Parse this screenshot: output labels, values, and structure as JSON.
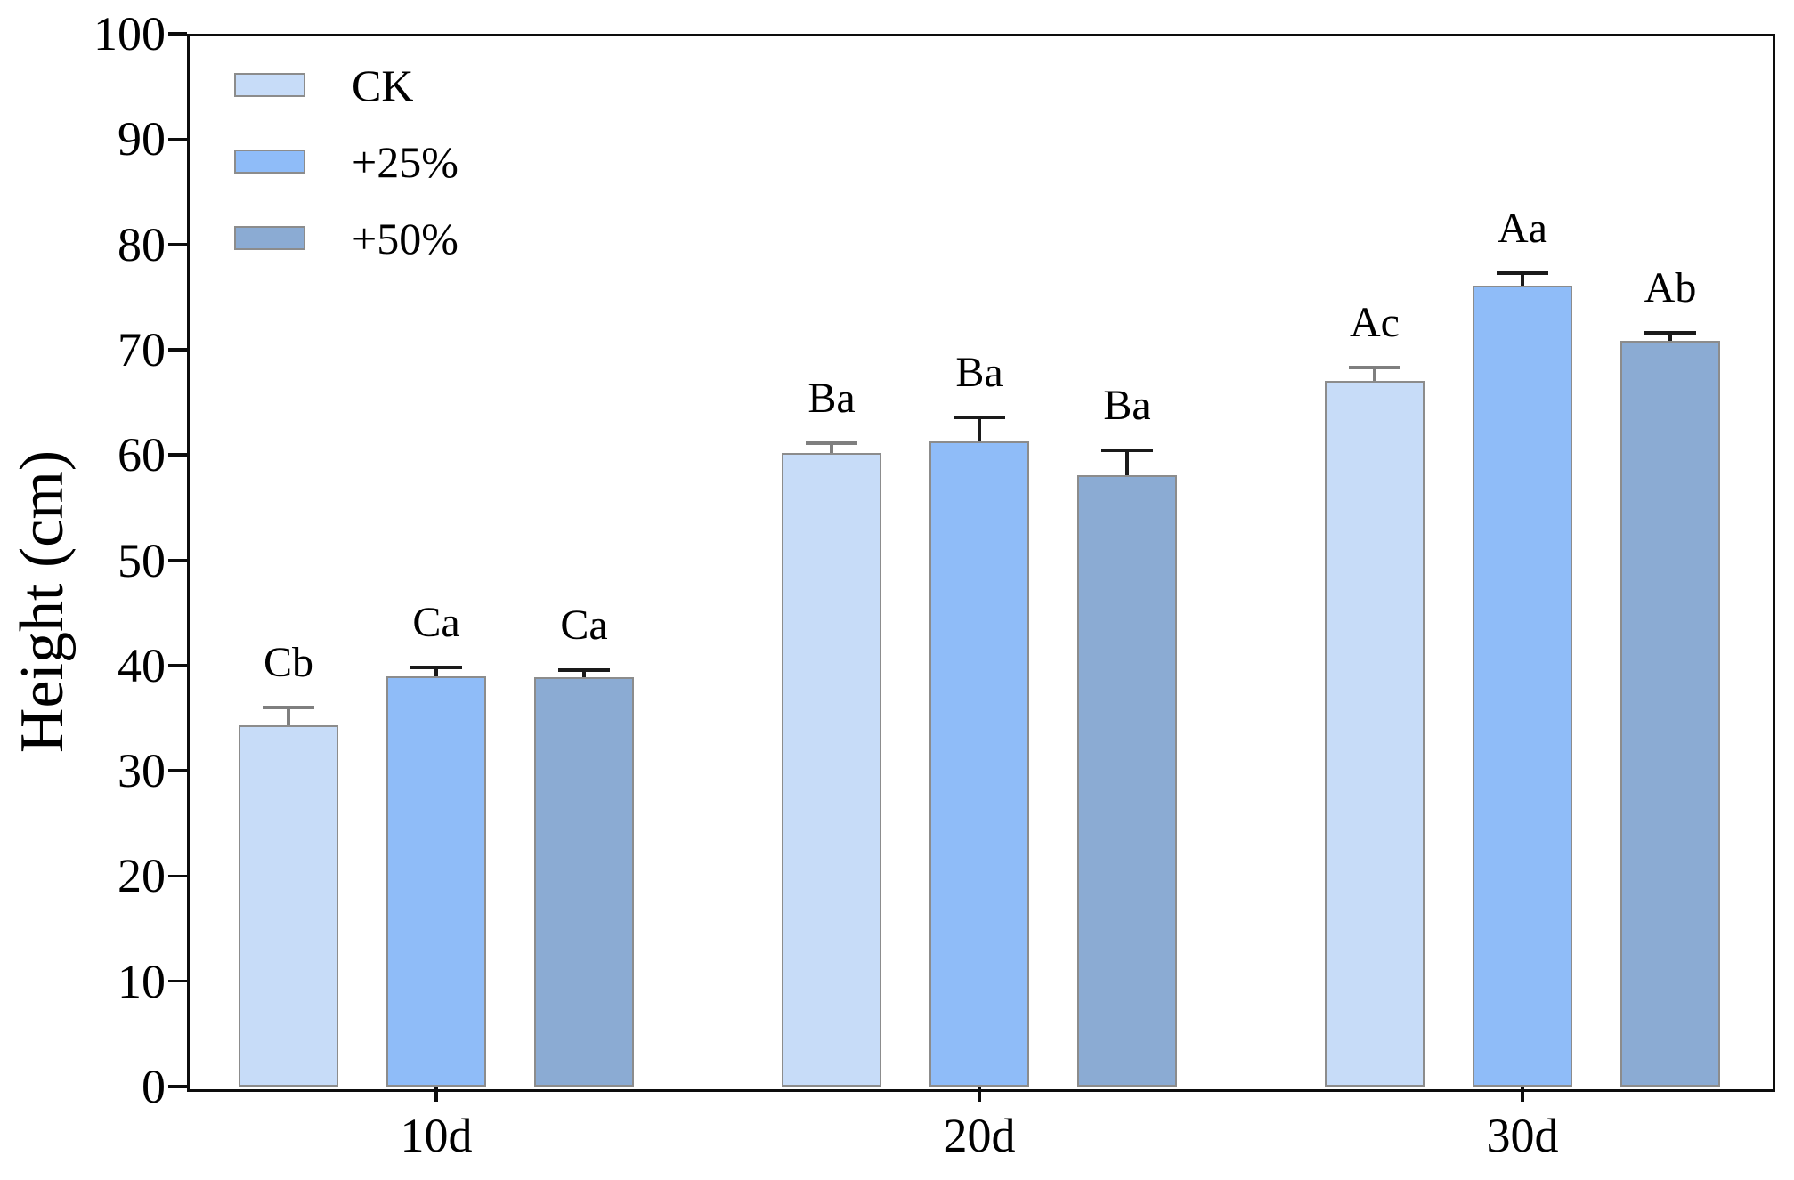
{
  "figure": {
    "background": "#ffffff"
  },
  "chart_data": {
    "type": "bar",
    "title": "",
    "xlabel": "",
    "ylabel": "Height (cm)",
    "ylim": [
      0,
      100
    ],
    "ytick_interval": 10,
    "ytick_labels": [
      "0",
      "10",
      "20",
      "30",
      "40",
      "50",
      "60",
      "70",
      "80",
      "90",
      "100"
    ],
    "categories": [
      "10d",
      "20d",
      "30d"
    ],
    "grid": false,
    "error_bars": "upper-only",
    "legend": {
      "position": "top-left",
      "entries": [
        "CK",
        "+25%",
        "+50%"
      ]
    },
    "colors": {
      "spine": "#0d0d0d",
      "bar_edge": "#8C8C8C"
    },
    "series": [
      {
        "name": "CK",
        "fill": "#C7DCF8",
        "edge": "#8C8C8C",
        "error_color": "#7F7F7F",
        "values": [
          34.3,
          60.2,
          67.0
        ],
        "errors": [
          1.7,
          0.9,
          1.3
        ],
        "sig_letters": [
          "Cb",
          "Ba",
          "Ac"
        ]
      },
      {
        "name": "+25%",
        "fill": "#8FBCF8",
        "edge": "#8C8C8C",
        "error_color": "#1A1A1A",
        "values": [
          39.0,
          61.3,
          76.1
        ],
        "errors": [
          0.8,
          2.3,
          1.2
        ],
        "sig_letters": [
          "Ca",
          "Ba",
          "Aa"
        ]
      },
      {
        "name": "+50%",
        "fill": "#8BABD3",
        "edge": "#8C8C8C",
        "error_color": "#1A1A1A",
        "values": [
          38.9,
          58.1,
          70.8
        ],
        "errors": [
          0.7,
          2.3,
          0.8
        ],
        "sig_letters": [
          "Ca",
          "Ba",
          "Ab"
        ]
      }
    ]
  }
}
